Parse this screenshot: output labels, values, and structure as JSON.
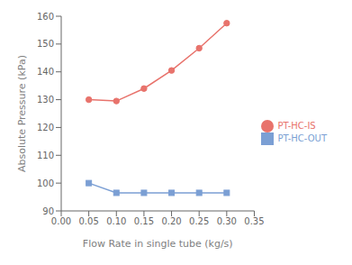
{
  "chart_data": {
    "type": "line",
    "x": [
      0.05,
      0.1,
      0.15,
      0.2,
      0.25,
      0.3
    ],
    "series": [
      {
        "name": "PT-HC-OUT",
        "color": "#7b9fd4",
        "marker": "square",
        "values": [
          100.0,
          96.5,
          96.5,
          96.5,
          96.5,
          96.5
        ]
      },
      {
        "name": "PT-HC-IS",
        "color": "#e8736c",
        "marker": "circle",
        "values": [
          130.0,
          129.5,
          134.0,
          140.5,
          148.5,
          157.5
        ]
      }
    ],
    "xlabel": "Flow Rate in single tube (kg/s)",
    "ylabel": "Absolute Pressure (kPa)",
    "xlim": [
      0.0,
      0.35
    ],
    "ylim": [
      90,
      160
    ],
    "xticks": [
      {
        "value": 0.0,
        "label": "0.00"
      },
      0.05,
      {
        "value": 0.1,
        "label": "0.10"
      },
      0.15,
      {
        "value": 0.2,
        "label": "0.20"
      },
      0.25,
      {
        "value": 0.3,
        "label": "0.30"
      },
      0.35
    ],
    "yticks": [
      90,
      100,
      110,
      120,
      130,
      140,
      150,
      160
    ],
    "legend": "right",
    "grid": false
  }
}
